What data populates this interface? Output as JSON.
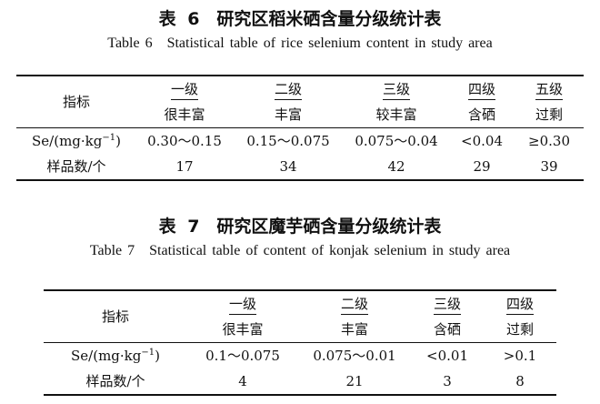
{
  "table6": {
    "title_zh": "表 6　研究区稻米硒含量分级统计表",
    "title_en": "Table 6　Statistical table of rice selenium content in study area",
    "indicator_label": "指标",
    "grades": [
      "一级",
      "二级",
      "三级",
      "四级",
      "五级"
    ],
    "grade_names": [
      "很丰富",
      "丰富",
      "较丰富",
      "含硒",
      "过剩"
    ],
    "se_label": "Se/(mg·kg",
    "se_sup": "−1",
    "se_close": ")",
    "se_values": [
      "0.30～0.15",
      "0.15～0.075",
      "0.075～0.04",
      "<0.04",
      "≥0.30"
    ],
    "count_label": "样品数/个",
    "counts": [
      "17",
      "34",
      "42",
      "29",
      "39"
    ]
  },
  "table7": {
    "title_zh": "表 7　研究区魔芋硒含量分级统计表",
    "title_en": "Table 7　Statistical table of content of konjak selenium in study area",
    "indicator_label": "指标",
    "grades": [
      "一级",
      "二级",
      "三级",
      "四级"
    ],
    "grade_names": [
      "很丰富",
      "丰富",
      "含硒",
      "过剩"
    ],
    "se_label": "Se/(mg·kg",
    "se_sup": "−1",
    "se_close": ")",
    "se_values": [
      "0.1～0.075",
      "0.075～0.01",
      "<0.01",
      ">0.1"
    ],
    "count_label": "样品数/个",
    "counts": [
      "4",
      "21",
      "3",
      "8"
    ]
  }
}
